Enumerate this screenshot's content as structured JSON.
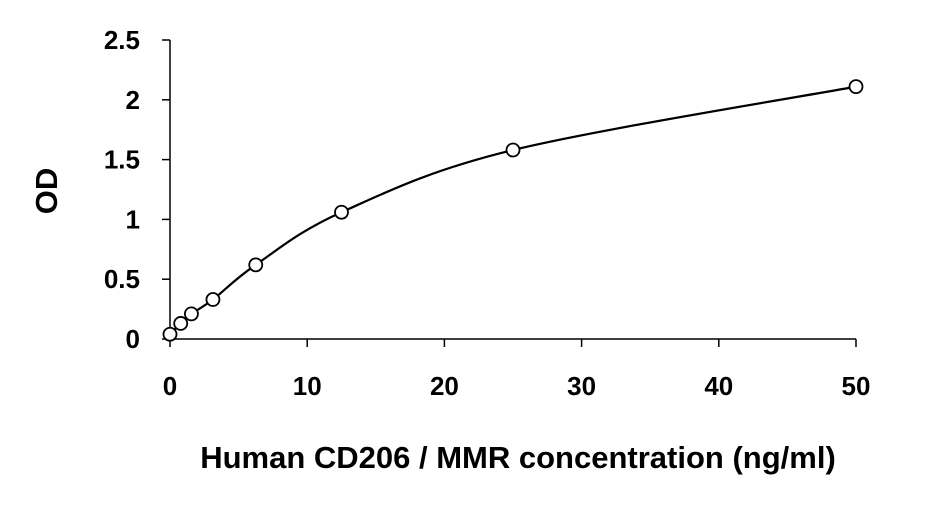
{
  "chart_data": {
    "type": "scatter",
    "title": "",
    "xlabel": "Human CD206 / MMR concentration (ng/ml)",
    "ylabel": "OD",
    "xlim": [
      0,
      50
    ],
    "ylim": [
      0,
      2.5
    ],
    "x_ticks": [
      "0",
      "10",
      "20",
      "30",
      "40",
      "50"
    ],
    "y_ticks": [
      "0",
      "0.5",
      "1",
      "1.5",
      "2",
      "2.5"
    ],
    "grid": false,
    "legend": "none",
    "trendline": "smooth",
    "marker": "open-circle",
    "series": [
      {
        "x": [
          0,
          0.78,
          1.56,
          3.13,
          6.25,
          12.5,
          25,
          50
        ],
        "y": [
          0.04,
          0.13,
          0.21,
          0.33,
          0.62,
          1.06,
          1.58,
          2.11
        ]
      }
    ]
  },
  "style": {
    "line_color": "#000000",
    "marker_fill": "#ffffff",
    "text_color": "#000000"
  }
}
